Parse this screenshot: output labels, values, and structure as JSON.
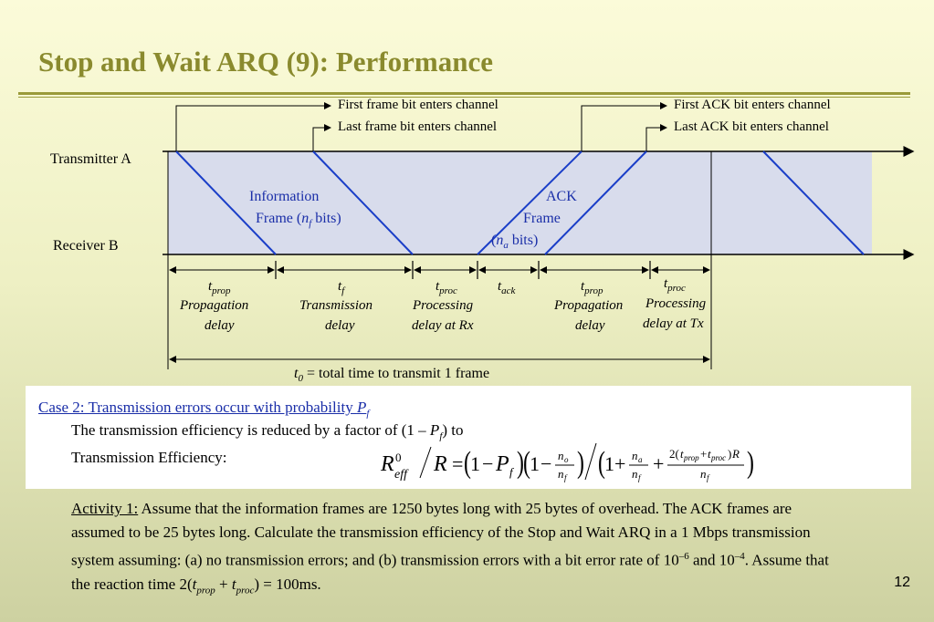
{
  "title": "Stop and Wait ARQ (9): Performance",
  "page_number": "12",
  "diagram": {
    "tx_label": "Transmitter A",
    "rx_label": "Receiver B",
    "callouts": {
      "first_frame": "First frame bit enters channel",
      "last_frame": "Last frame bit enters channel",
      "first_ack": "First ACK bit enters channel",
      "last_ack": "Last ACK bit enters channel"
    },
    "info_frame": {
      "line1": "Information",
      "line2_pre": "Frame (",
      "var": "n",
      "sub": "f",
      "line2_post": " bits)"
    },
    "ack_frame": {
      "line1": "ACK",
      "line2": "Frame",
      "line3_pre": "(",
      "var": "n",
      "sub": "a",
      "line3_post": " bits)"
    },
    "intervals": [
      {
        "var": "t",
        "sub": "prop",
        "desc1": "Propagation",
        "desc2": "delay"
      },
      {
        "var": "t",
        "sub": "f",
        "desc1": "Transmission",
        "desc2": "delay"
      },
      {
        "var": "t",
        "sub": "proc",
        "desc1": "Processing",
        "desc2": "delay at Rx"
      },
      {
        "var": "t",
        "sub": "ack",
        "desc1": "",
        "desc2": ""
      },
      {
        "var": "t",
        "sub": "prop",
        "desc1": "Propagation",
        "desc2": "delay"
      },
      {
        "var": "t",
        "sub": "proc",
        "desc1": "Processing",
        "desc2": "delay at Tx"
      }
    ],
    "total": {
      "var": "t",
      "sub": "0",
      "text": " = total time to transmit 1 frame"
    }
  },
  "case2": {
    "heading": "Case 2: Transmission errors occur with probability ",
    "heading_var": "P",
    "heading_sub": "f",
    "line1_pre": "The transmission efficiency is reduced by a factor of (1 – ",
    "line1_var": "P",
    "line1_sub": "f",
    "line1_post": ") to",
    "eff_label": "Transmission Efficiency:"
  },
  "activity": {
    "label": "Activity 1:",
    "text1": " Assume that the information frames are 1250 bytes long with 25 bytes of overhead. The ACK frames are assumed to be 25 bytes long. Calculate the transmission efficiency of the Stop and Wait ARQ in a 1 Mbps transmission system assuming: (a) no transmission errors; and (b) transmission errors with a bit error rate of 10",
    "exp1": "–6",
    "text2": " and 10",
    "exp2": "–4",
    "text3": ". Assume that the reaction time 2(",
    "v1": "t",
    "s1": "prop",
    "plus": " + ",
    "v2": "t",
    "s2": "proc",
    "text4": ") = 100ms."
  }
}
